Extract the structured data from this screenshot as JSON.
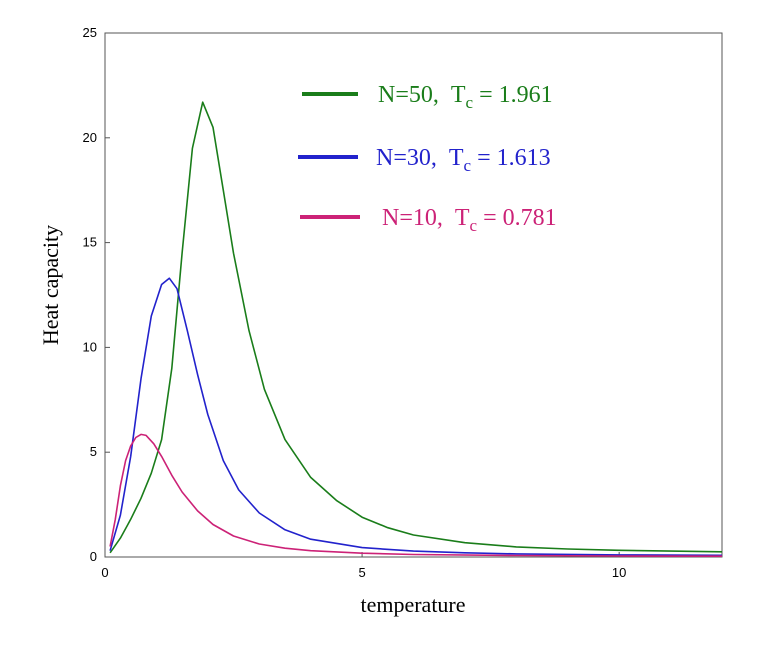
{
  "chart_data": {
    "type": "line",
    "title": "",
    "xlabel": "temperature",
    "ylabel": "Heat capacity",
    "xlim": [
      0,
      12
    ],
    "ylim": [
      0,
      25
    ],
    "x_ticks": [
      "0",
      "5",
      "10"
    ],
    "y_ticks": [
      "0",
      "5",
      "10",
      "15",
      "20",
      "25"
    ],
    "grid": false,
    "legend_position": "top-right",
    "series": [
      {
        "name": "N=50, Tc = 1.961",
        "label_main": "N=50,",
        "label_T": "T",
        "label_sub": "c",
        "label_value": "= 1.961",
        "color": "#1a7d1a",
        "x": [
          0.1,
          0.3,
          0.5,
          0.7,
          0.9,
          1.1,
          1.3,
          1.5,
          1.7,
          1.9,
          2.1,
          2.3,
          2.5,
          2.8,
          3.1,
          3.5,
          4,
          4.5,
          5,
          5.5,
          6,
          7,
          8,
          9,
          10,
          11,
          12
        ],
        "y": [
          0.2,
          0.9,
          1.8,
          2.8,
          4.0,
          5.6,
          9.0,
          14.5,
          19.5,
          21.7,
          20.5,
          17.5,
          14.5,
          10.8,
          8.0,
          5.6,
          3.8,
          2.7,
          1.9,
          1.4,
          1.05,
          0.68,
          0.48,
          0.38,
          0.32,
          0.28,
          0.25
        ]
      },
      {
        "name": "N=30, Tc = 1.613",
        "label_main": "N=30,",
        "label_T": "T",
        "label_sub": "c",
        "label_value": "= 1.613",
        "color": "#2222cc",
        "x": [
          0.1,
          0.3,
          0.5,
          0.7,
          0.9,
          1.1,
          1.25,
          1.4,
          1.6,
          1.8,
          2.0,
          2.3,
          2.6,
          3.0,
          3.5,
          4.0,
          5.0,
          6.0,
          7.0,
          8.0,
          10.0,
          12.0
        ],
        "y": [
          0.3,
          2.0,
          4.8,
          8.5,
          11.5,
          13.0,
          13.3,
          12.8,
          10.8,
          8.7,
          6.8,
          4.6,
          3.2,
          2.1,
          1.3,
          0.85,
          0.45,
          0.28,
          0.2,
          0.15,
          0.1,
          0.08
        ]
      },
      {
        "name": "N=10, Tc = 0.781",
        "label_main": "N=10,",
        "label_T": "T",
        "label_sub": "c",
        "label_value": "= 0.781",
        "color": "#cc2277",
        "x": [
          0.1,
          0.2,
          0.3,
          0.4,
          0.5,
          0.6,
          0.7,
          0.8,
          0.95,
          1.1,
          1.3,
          1.5,
          1.8,
          2.1,
          2.5,
          3.0,
          3.5,
          4.0,
          5.0,
          6.0,
          8.0,
          10.0,
          12.0
        ],
        "y": [
          0.5,
          1.8,
          3.4,
          4.6,
          5.3,
          5.7,
          5.85,
          5.8,
          5.4,
          4.8,
          3.9,
          3.1,
          2.2,
          1.55,
          1.0,
          0.62,
          0.42,
          0.3,
          0.18,
          0.12,
          0.07,
          0.05,
          0.04
        ]
      }
    ]
  }
}
